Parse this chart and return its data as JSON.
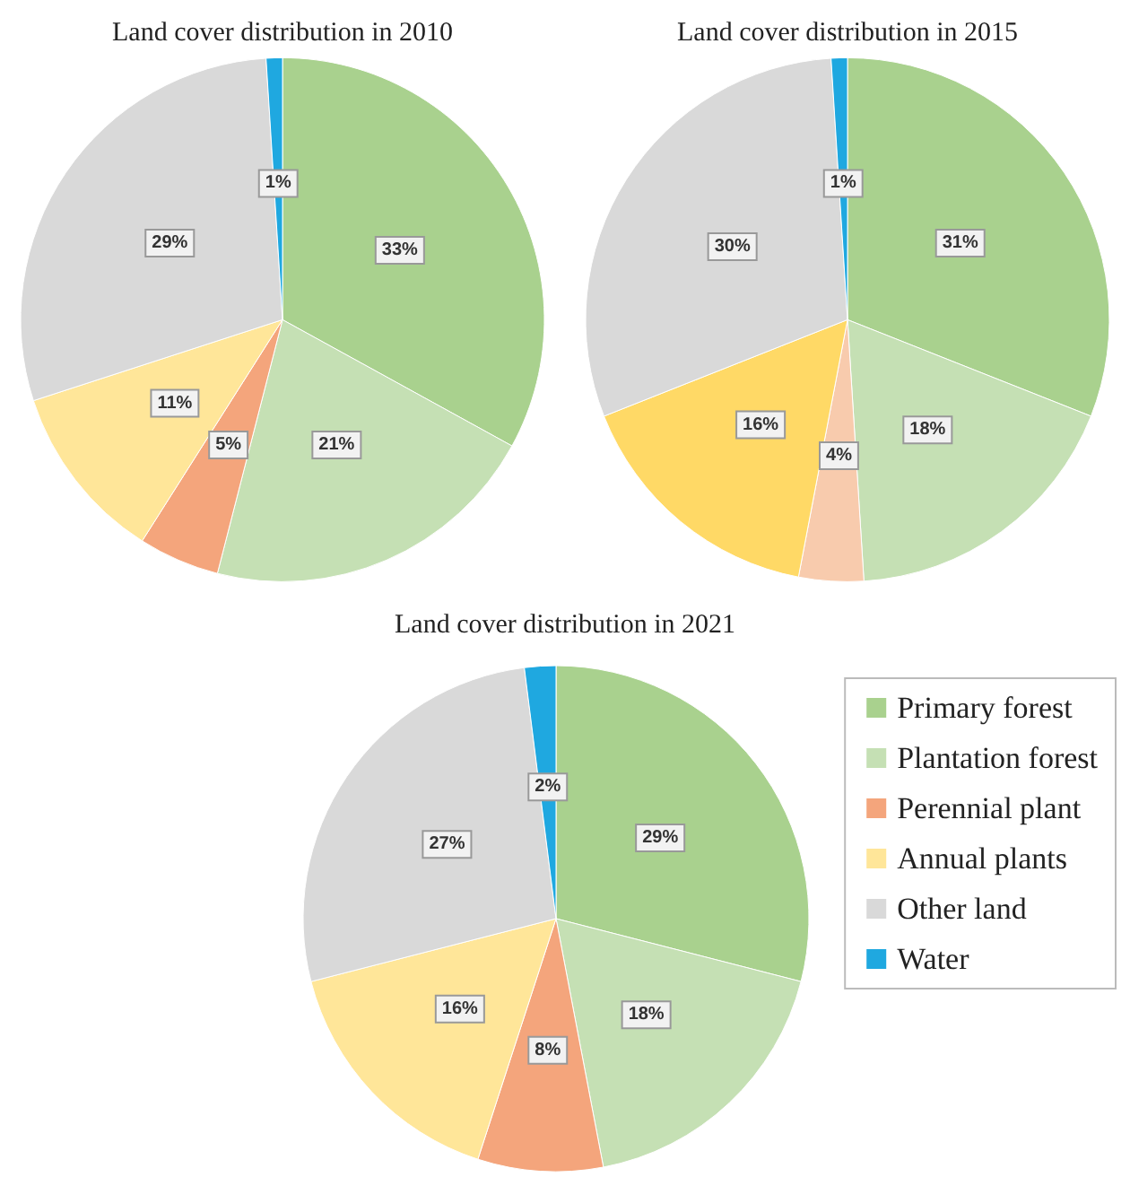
{
  "chart_data": [
    {
      "type": "pie",
      "title": "Land cover distribution in 2010",
      "categories": [
        null,
        null,
        null,
        null,
        null,
        null
      ],
      "values": [
        33,
        21,
        5,
        11,
        29,
        1
      ],
      "colors": [
        "#a9d18e",
        "#c5e0b4",
        "#f4a57c",
        "#ffe699",
        "#d9d9d9",
        "#1fa8e0"
      ],
      "value_labels": [
        "33%",
        "21%",
        "5%",
        "11%",
        "29%",
        "1%"
      ],
      "legend": false
    },
    {
      "type": "pie",
      "title": "Land cover distribution in 2015",
      "categories": [
        null,
        null,
        null,
        null,
        null,
        null
      ],
      "values": [
        31,
        18,
        4,
        16,
        30,
        1
      ],
      "colors": [
        "#a9d18e",
        "#c5e0b4",
        "#f8cbad",
        "#ffd966",
        "#d9d9d9",
        "#1fa8e0"
      ],
      "value_labels": [
        "31%",
        "18%",
        "4%",
        "16%",
        "30%",
        "1%"
      ],
      "legend": false
    },
    {
      "type": "pie",
      "title": "Land cover distribution in 2021",
      "categories": [
        "Primary forest",
        "Plantation forest",
        "Perennial plant",
        "Annual plants",
        "Other land",
        "Water"
      ],
      "values": [
        29,
        18,
        8,
        16,
        27,
        2
      ],
      "colors": [
        "#a9d18e",
        "#c5e0b4",
        "#f4a57c",
        "#ffe699",
        "#d9d9d9",
        "#1fa8e0"
      ],
      "value_labels": [
        "29%",
        "18%",
        "8%",
        "16%",
        "27%",
        "2%"
      ],
      "legend": "right"
    }
  ]
}
